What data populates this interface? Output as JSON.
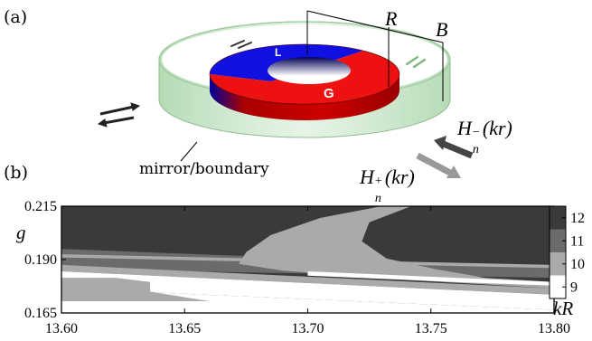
{
  "panel_a": {
    "label": "(a)",
    "symbol_R": "R",
    "symbol_B": "B",
    "region_L": "L",
    "region_G": "G",
    "mirror_label": "mirror/boundary",
    "wave_in": {
      "base": "H",
      "sub": "n",
      "sup": "−",
      "arg": "(kr)"
    },
    "wave_out": {
      "base": "H",
      "sub": "n",
      "sup": "+",
      "arg": "(kr)"
    },
    "colors": {
      "loss_region": "#1010e0",
      "gain_region": "#ee1111",
      "mirror": "#b8dcb8"
    }
  },
  "panel_b": {
    "label": "(b)",
    "y_label": "g",
    "x_label": "kR",
    "colorbar_ticks": [
      "12",
      "11",
      "10",
      "9"
    ]
  },
  "chart_data": {
    "type": "heatmap",
    "title": "",
    "xlabel": "kR",
    "ylabel": "g",
    "xlim": [
      13.6,
      13.8
    ],
    "ylim": [
      0.165,
      0.215
    ],
    "x_ticks": [
      "13.60",
      "13.65",
      "13.70",
      "13.75",
      "13.80"
    ],
    "y_ticks": [
      "0.215",
      "0.190",
      "0.165"
    ],
    "colorbar": {
      "range": [
        8.5,
        12.5
      ],
      "ticks": [
        12,
        11,
        10,
        9
      ],
      "colors": {
        "9": "#ffffff",
        "10": "#aaaaaa",
        "11": "#6b6b6b",
        "12": "#3a3a3a"
      }
    },
    "regions": [
      {
        "level": 12,
        "points": [
          [
            13.6,
            0.215
          ],
          [
            13.8,
            0.215
          ],
          [
            13.8,
            0.188
          ],
          [
            13.6,
            0.188
          ]
        ]
      },
      {
        "level": 11,
        "points": [
          [
            13.6,
            0.195
          ],
          [
            13.8,
            0.186
          ],
          [
            13.8,
            0.1815
          ],
          [
            13.6,
            0.1855
          ]
        ]
      },
      {
        "level": 10,
        "points": [
          [
            13.6,
            0.1925
          ],
          [
            13.8,
            0.1875
          ],
          [
            13.8,
            0.186
          ],
          [
            13.6,
            0.191
          ]
        ]
      },
      {
        "level": 10,
        "points": [
          [
            13.6,
            0.1875
          ],
          [
            13.8,
            0.1765
          ],
          [
            13.8,
            0.1735
          ],
          [
            13.6,
            0.1845
          ]
        ]
      },
      {
        "level": 9,
        "points": [
          [
            13.6,
            0.1845
          ],
          [
            13.8,
            0.1735
          ],
          [
            13.8,
            0.1665
          ],
          [
            13.6,
            0.1765
          ]
        ]
      },
      {
        "level": 9,
        "points": [
          [
            13.6,
            0.1765
          ],
          [
            13.8,
            0.1665
          ],
          [
            13.8,
            0.165
          ],
          [
            13.6,
            0.165
          ]
        ]
      },
      {
        "level": 10,
        "points": [
          [
            13.6,
            0.1815
          ],
          [
            13.622,
            0.1815
          ],
          [
            13.636,
            0.1795
          ],
          [
            13.636,
            0.175
          ],
          [
            13.66,
            0.1705
          ],
          [
            13.6,
            0.1705
          ]
        ]
      },
      {
        "level": 10,
        "points": [
          [
            13.73,
            0.215
          ],
          [
            13.705,
            0.2095
          ],
          [
            13.685,
            0.2015
          ],
          [
            13.675,
            0.1935
          ],
          [
            13.672,
            0.188
          ],
          [
            13.69,
            0.1848
          ],
          [
            13.74,
            0.1805
          ],
          [
            13.8,
            0.1765
          ],
          [
            13.8,
            0.1795
          ],
          [
            13.772,
            0.1815
          ],
          [
            13.752,
            0.1855
          ],
          [
            13.732,
            0.1905
          ],
          [
            13.722,
            0.1985
          ],
          [
            13.725,
            0.2075
          ],
          [
            13.742,
            0.215
          ]
        ]
      },
      {
        "level": 9,
        "points": [
          [
            13.7,
            0.1845
          ],
          [
            13.76,
            0.1815
          ],
          [
            13.8,
            0.1795
          ],
          [
            13.8,
            0.1778
          ],
          [
            13.76,
            0.1795
          ],
          [
            13.7,
            0.1825
          ]
        ]
      }
    ]
  }
}
